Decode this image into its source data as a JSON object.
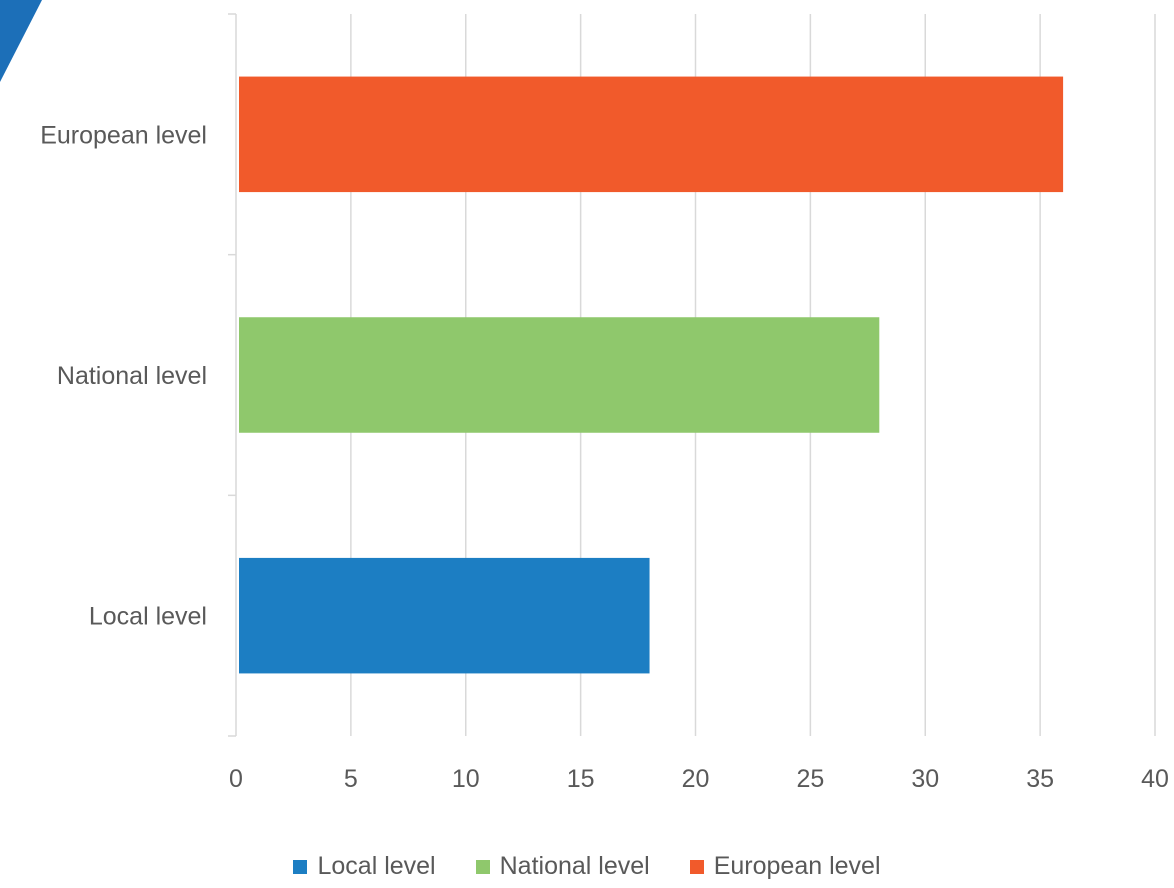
{
  "chart_data": {
    "type": "bar",
    "orientation": "horizontal",
    "title": "",
    "xlabel": "",
    "ylabel": "",
    "categories": [
      "Local level",
      "National level",
      "European level"
    ],
    "values": [
      18,
      28,
      36
    ],
    "colors": [
      "#1c7ec3",
      "#8fc86c",
      "#f15a2b"
    ],
    "xlim": [
      0,
      40
    ],
    "x_ticks": [
      0,
      5,
      10,
      15,
      20,
      25,
      30,
      35,
      40
    ],
    "grid": true,
    "legend": {
      "placement": "bottom",
      "entries": [
        {
          "label": "Local level",
          "color": "#1c7ec3"
        },
        {
          "label": "National level",
          "color": "#8fc86c"
        },
        {
          "label": "European level",
          "color": "#f15a2b"
        }
      ]
    }
  },
  "decor": {
    "corner_accent_color": "#1c6fb8"
  }
}
